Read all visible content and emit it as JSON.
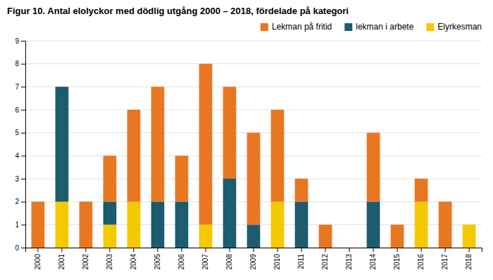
{
  "chart_data": {
    "type": "bar",
    "stacked": true,
    "title": "Figur 10. Antal elolyckor med dödlig utgång 2000 – 2018, fördelade på kategori",
    "categories": [
      "2000",
      "2001",
      "2002",
      "2003",
      "2004",
      "2005",
      "2006",
      "2007",
      "2008",
      "2009",
      "2010",
      "2011",
      "2012",
      "2013",
      "2014",
      "2015",
      "2016",
      "2017",
      "2018"
    ],
    "series": [
      {
        "name": "Lekman på fritid",
        "color": "#E87722",
        "values": [
          2,
          0,
          2,
          2,
          4,
          5,
          2,
          7,
          4,
          4,
          4,
          1,
          1,
          0,
          3,
          1,
          1,
          2,
          0
        ]
      },
      {
        "name": "lekman i arbete",
        "color": "#1D5B6E",
        "values": [
          0,
          5,
          0,
          1,
          0,
          2,
          2,
          0,
          3,
          1,
          0,
          2,
          0,
          0,
          2,
          0,
          0,
          0,
          0
        ]
      },
      {
        "name": "Elyrkesman",
        "color": "#F5C800",
        "values": [
          0,
          2,
          0,
          1,
          2,
          0,
          0,
          1,
          0,
          0,
          2,
          0,
          0,
          0,
          0,
          0,
          2,
          0,
          1
        ]
      }
    ],
    "ylim": [
      0,
      9
    ],
    "yticks": [
      0,
      1,
      2,
      3,
      4,
      5,
      6,
      7,
      8,
      9
    ],
    "grid": true,
    "legend": "upper right"
  }
}
